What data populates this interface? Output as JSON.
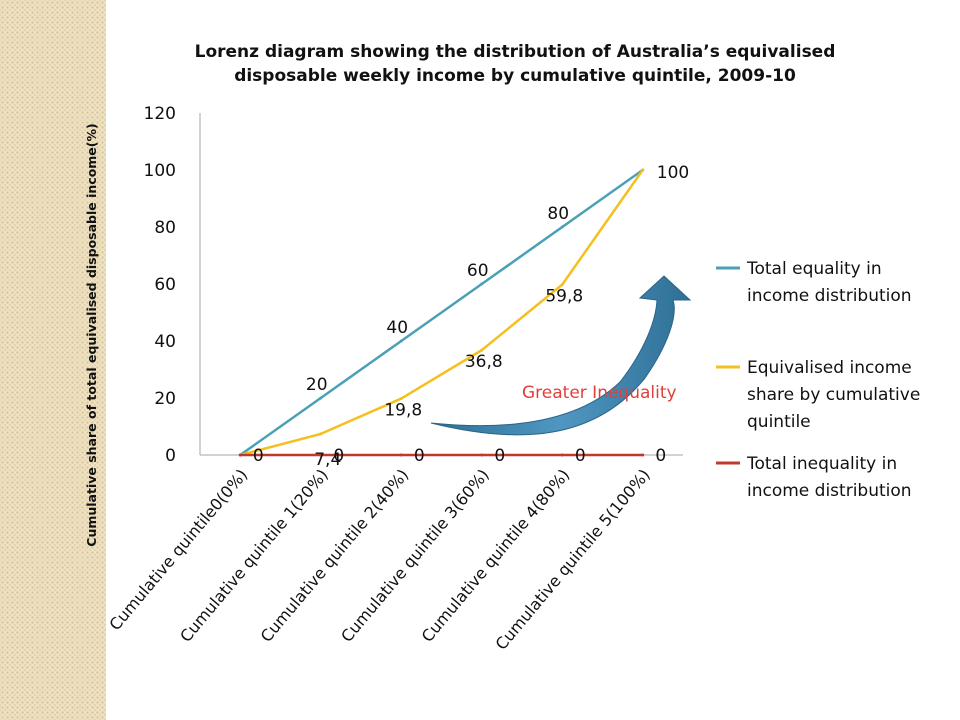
{
  "chart_data": {
    "type": "line",
    "title": "Lorenz diagram showing the distribution of Australia’s equivalised disposable weekly income by cumulative quintile, 2009-10",
    "title_lines": [
      "Lorenz diagram showing the distribution of Australia’s equivalised",
      "disposable weekly income by cumulative quintile, 2009-10"
    ],
    "ylabel": "Cumulative share of total equivalised disposable income(%)",
    "xlabel": "",
    "ylim": [
      0,
      120
    ],
    "y_ticks": [
      0,
      20,
      40,
      60,
      80,
      100,
      120
    ],
    "categories": [
      "Cumulative quintile0(0%)",
      "Cumulative quintile 1(20%)",
      "Cumulative quintile 2(40%)",
      "Cumulative quintile 3(60%)",
      "Cumulative quintile 4(80%)",
      "Cumulative quintile 5(100%)"
    ],
    "series": [
      {
        "name": "Total equality in income distribution",
        "values": [
          0,
          20,
          40,
          60,
          80,
          100
        ],
        "color": "#4aa0b5"
      },
      {
        "name": "Equivalised income share by cumulative quintile",
        "values": [
          0,
          7.4,
          19.8,
          36.8,
          59.8,
          100
        ],
        "color": "#f5bf1e"
      },
      {
        "name": "Total inequality in income distribution",
        "values": [
          0,
          0,
          0,
          0,
          0,
          0
        ],
        "color": "#c0392b"
      }
    ],
    "data_labels": {
      "equality": [
        "",
        "20",
        "40",
        "60",
        "80",
        "100"
      ],
      "income": [
        "",
        "7,4",
        "19,8",
        "36,8",
        "59,8",
        ""
      ],
      "inequality": [
        "0",
        "0",
        "0",
        "0",
        "0",
        "0"
      ]
    },
    "legend_lines": [
      [
        "Total equality in",
        "income distribution"
      ],
      [
        "Equivalised income",
        "share by cumulative",
        "quintile"
      ],
      [
        "Total inequality in",
        "income distribution"
      ]
    ],
    "annotation": {
      "text": "Greater Inequality",
      "color": "#e0403c",
      "arrow_color": "#3a7fa6"
    },
    "grid": false,
    "legend_position": "right"
  }
}
